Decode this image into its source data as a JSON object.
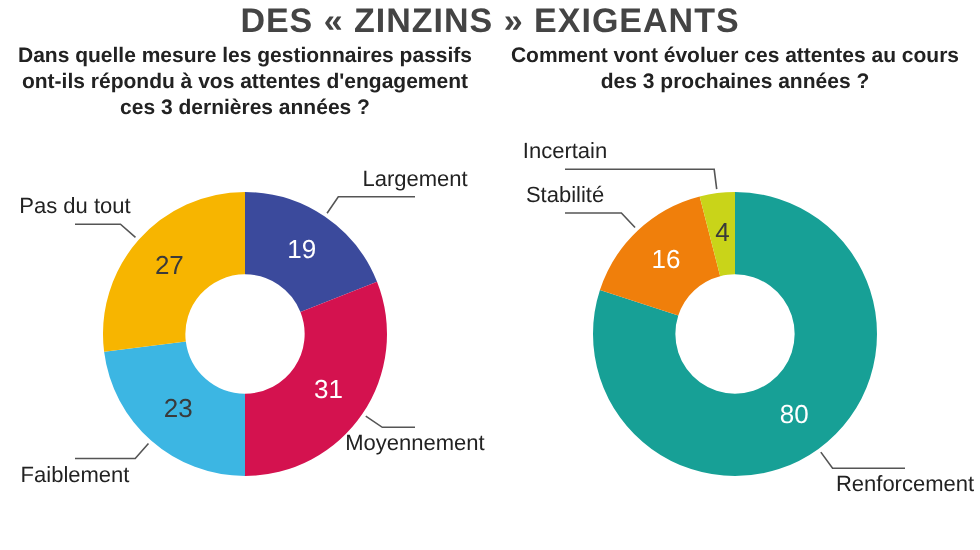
{
  "chart_data": [
    {
      "type": "donut",
      "title": "DES « ZINZINS » EXIGEANTS",
      "subtitle": "Dans quelle mesure les gestionnaires passifs ont-ils répondu à vos attentes d'engagement ces 3 dernières années ?",
      "categories": [
        "Largement",
        "Moyennement",
        "Faiblement",
        "Pas du tout"
      ],
      "values": [
        19,
        31,
        23,
        27
      ],
      "colors": [
        "#3b4a9c",
        "#d4124f",
        "#3cb6e3",
        "#f7b500"
      ],
      "data_labels": true
    },
    {
      "type": "donut",
      "title": "Comment vont évoluer ces attentes au cours des 3 prochaines années ?",
      "categories": [
        "Renforcement",
        "Stabilité",
        "Incertain"
      ],
      "values": [
        80,
        16,
        4
      ],
      "colors": [
        "#17a096",
        "#f07f0b",
        "#c9d419"
      ],
      "data_labels": true
    }
  ]
}
